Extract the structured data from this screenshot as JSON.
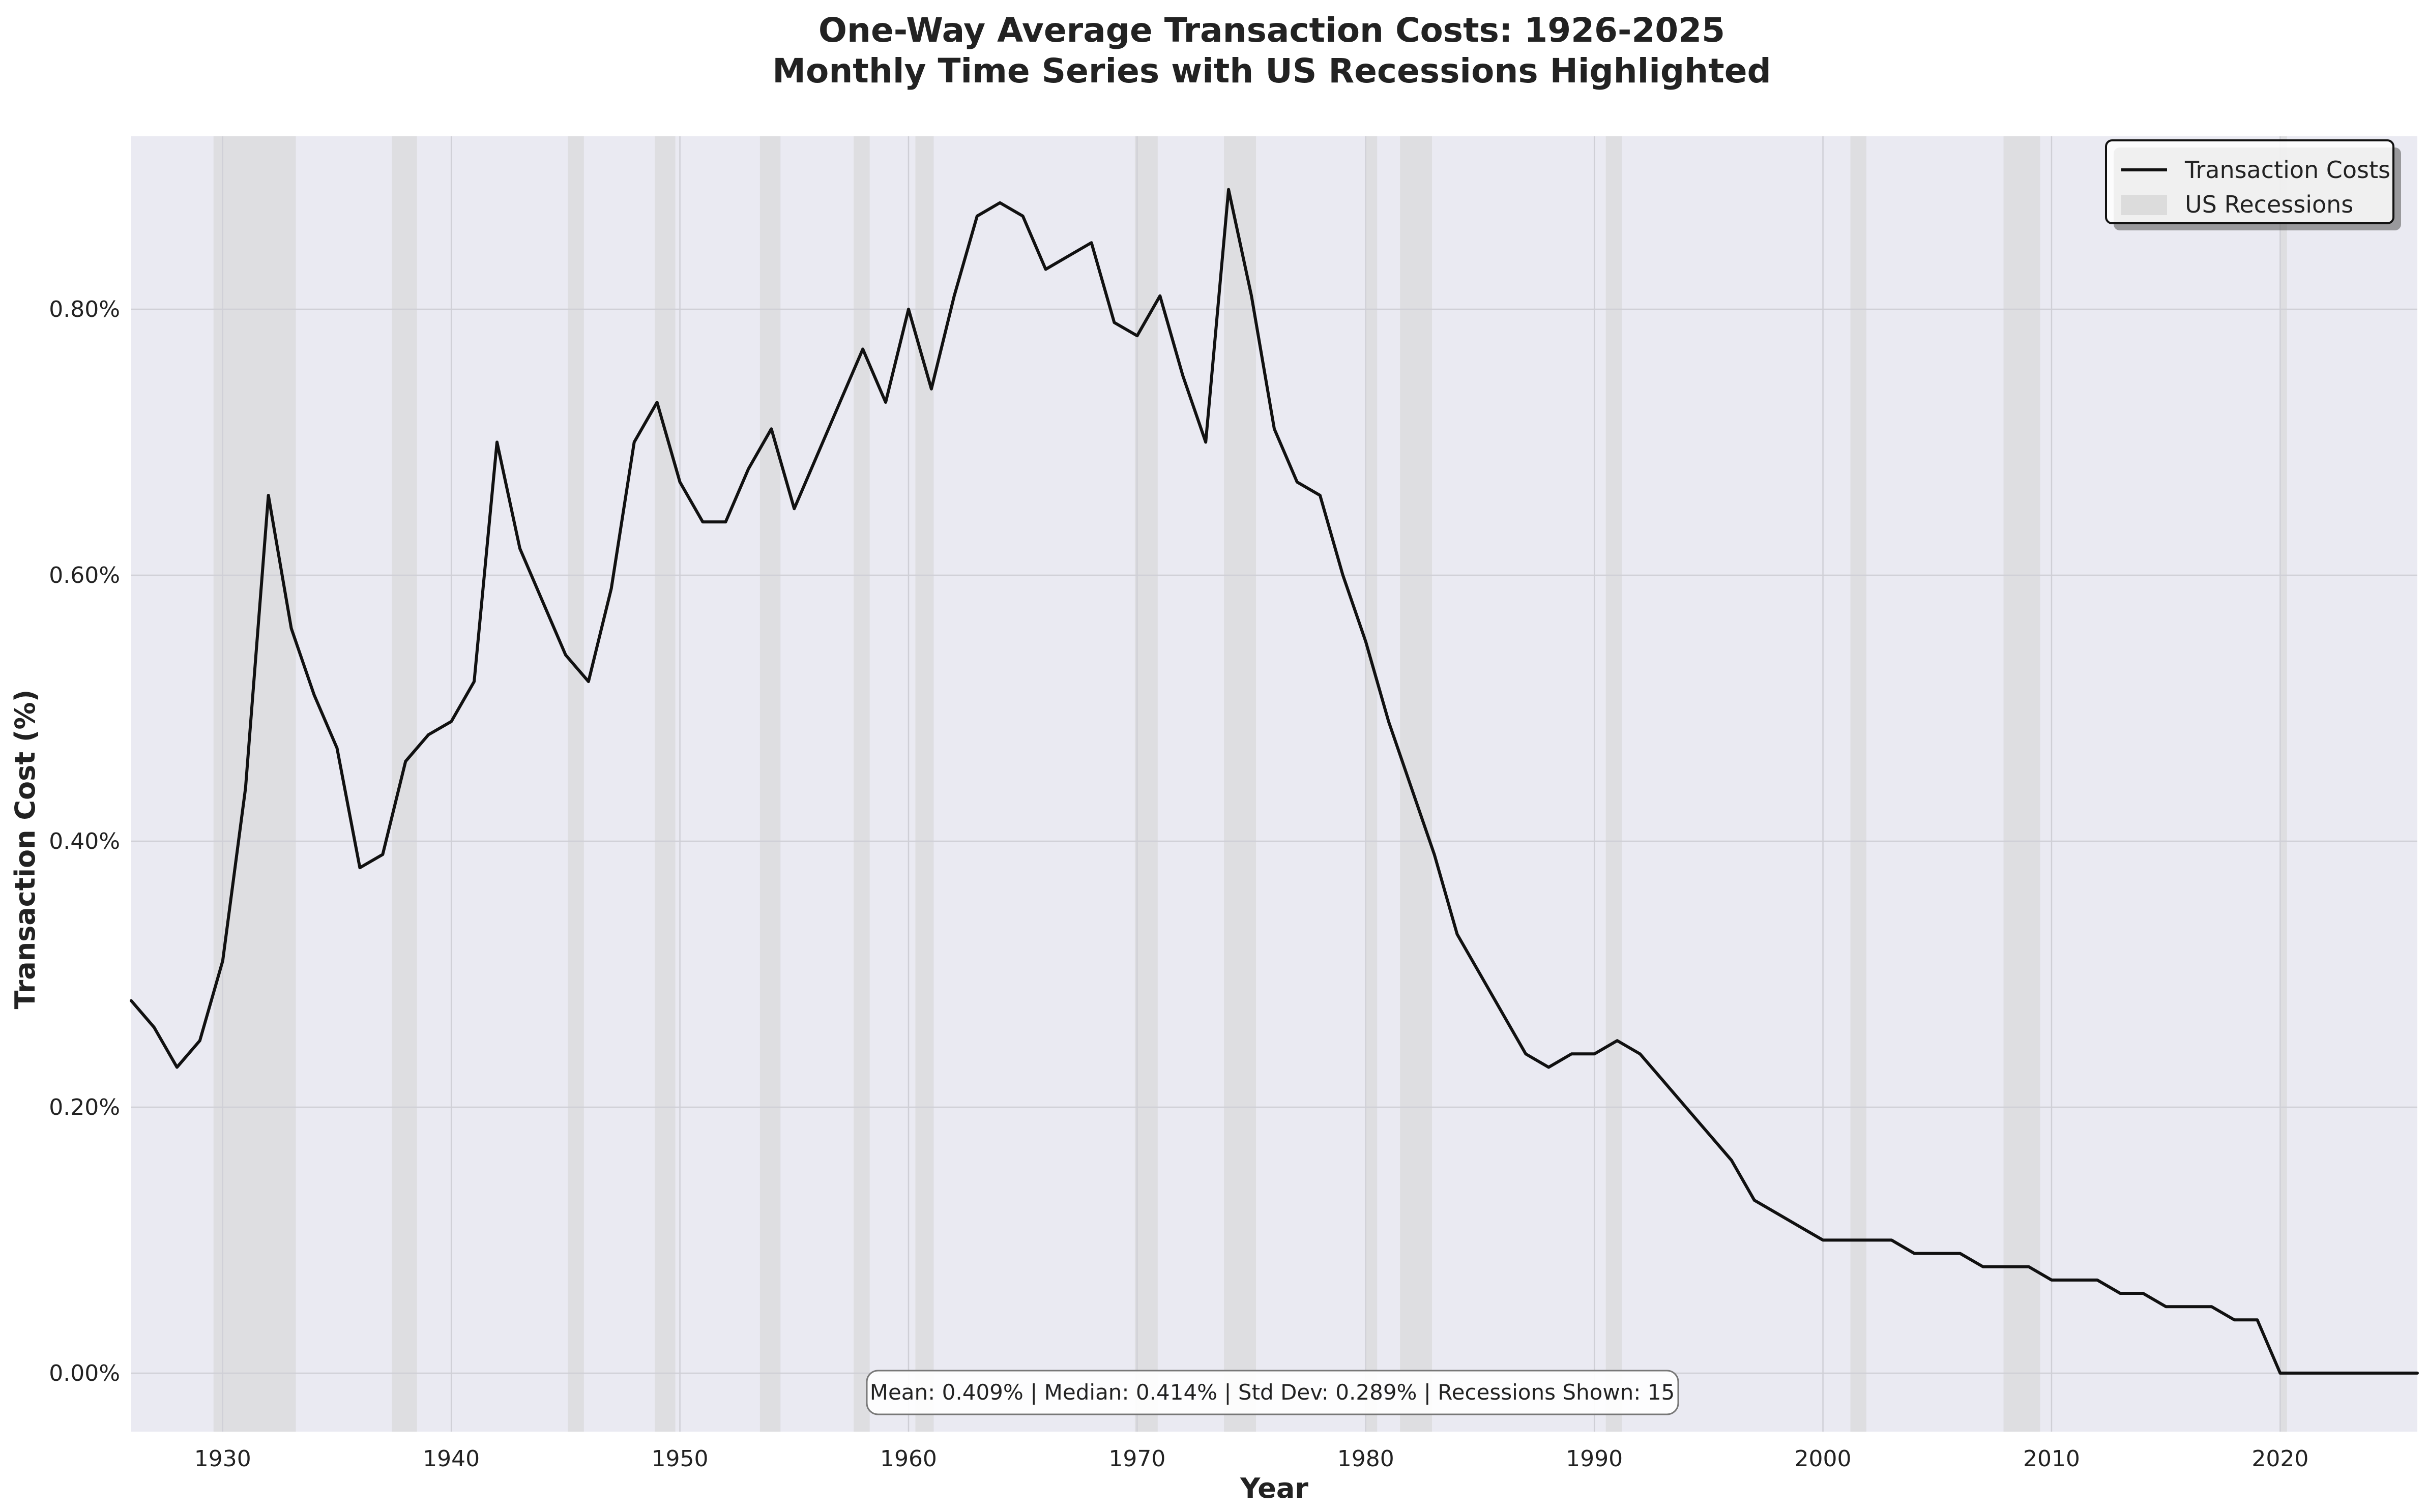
{
  "chart_data": {
    "type": "line",
    "title": "One-Way Average Transaction Costs: 1926-2025",
    "subtitle": "Monthly Time Series with US Recessions Highlighted",
    "xlabel": "Year",
    "ylabel": "Transaction Cost (%)",
    "xlim": [
      1926,
      2026
    ],
    "ylim": [
      -0.044,
      0.93
    ],
    "xticks": [
      1930,
      1940,
      1950,
      1960,
      1970,
      1980,
      1990,
      2000,
      2010,
      2020
    ],
    "yticks": [
      0.0,
      0.2,
      0.4,
      0.6,
      0.8
    ],
    "ytick_labels": [
      "0.00%",
      "0.20%",
      "0.40%",
      "0.60%",
      "0.80%"
    ],
    "grid": true,
    "legend_placement": "top-right",
    "series": [
      {
        "name": "Transaction Costs",
        "color": "#111111",
        "x": [
          1926,
          1927,
          1928,
          1929,
          1930,
          1931,
          1932,
          1933,
          1934,
          1935,
          1936,
          1937,
          1938,
          1939,
          1940,
          1941,
          1942,
          1943,
          1944,
          1945,
          1946,
          1947,
          1948,
          1949,
          1950,
          1951,
          1952,
          1953,
          1954,
          1955,
          1956,
          1957,
          1958,
          1959,
          1960,
          1961,
          1962,
          1963,
          1964,
          1965,
          1966,
          1967,
          1968,
          1969,
          1970,
          1971,
          1972,
          1973,
          1974,
          1975,
          1976,
          1977,
          1978,
          1979,
          1980,
          1981,
          1982,
          1983,
          1984,
          1985,
          1986,
          1987,
          1988,
          1989,
          1990,
          1991,
          1992,
          1993,
          1994,
          1995,
          1996,
          1997,
          1998,
          1999,
          2000,
          2001,
          2002,
          2003,
          2004,
          2005,
          2006,
          2007,
          2008,
          2009,
          2010,
          2011,
          2012,
          2013,
          2014,
          2015,
          2016,
          2017,
          2018,
          2019,
          2020,
          2021,
          2022,
          2023,
          2024,
          2025,
          2026
        ],
        "y": [
          0.28,
          0.26,
          0.23,
          0.25,
          0.31,
          0.44,
          0.66,
          0.56,
          0.51,
          0.47,
          0.38,
          0.39,
          0.46,
          0.48,
          0.49,
          0.52,
          0.7,
          0.62,
          0.58,
          0.54,
          0.52,
          0.59,
          0.7,
          0.73,
          0.67,
          0.64,
          0.64,
          0.68,
          0.71,
          0.65,
          0.69,
          0.73,
          0.77,
          0.73,
          0.8,
          0.74,
          0.81,
          0.87,
          0.88,
          0.87,
          0.83,
          0.84,
          0.85,
          0.79,
          0.78,
          0.81,
          0.75,
          0.7,
          0.89,
          0.81,
          0.71,
          0.67,
          0.66,
          0.6,
          0.55,
          0.49,
          0.44,
          0.39,
          0.33,
          0.3,
          0.27,
          0.24,
          0.23,
          0.24,
          0.24,
          0.25,
          0.24,
          0.22,
          0.2,
          0.18,
          0.16,
          0.13,
          0.12,
          0.11,
          0.1,
          0.1,
          0.1,
          0.1,
          0.09,
          0.09,
          0.09,
          0.08,
          0.08,
          0.08,
          0.07,
          0.07,
          0.07,
          0.06,
          0.06,
          0.05,
          0.05,
          0.05,
          0.04,
          0.04,
          0.0,
          0.0,
          0.0,
          0.0,
          0.0,
          0.0,
          0.0
        ]
      }
    ],
    "recessions": [
      [
        1929.6,
        1933.2
      ],
      [
        1937.4,
        1938.5
      ],
      [
        1945.1,
        1945.8
      ],
      [
        1948.9,
        1949.8
      ],
      [
        1953.5,
        1954.4
      ],
      [
        1957.6,
        1958.3
      ],
      [
        1960.3,
        1961.1
      ],
      [
        1969.9,
        1970.9
      ],
      [
        1973.8,
        1975.2
      ],
      [
        1980.0,
        1980.5
      ],
      [
        1981.5,
        1982.9
      ],
      [
        1990.5,
        1991.2
      ],
      [
        2001.2,
        2001.9
      ],
      [
        2007.9,
        2009.5
      ],
      [
        2020.0,
        2020.3
      ]
    ],
    "legend": {
      "line_label": "Transaction Costs",
      "recession_label": "US Recessions"
    },
    "stats_text": "Mean: 0.409% | Median: 0.414% | Std Dev: 0.289% | Recessions Shown: 15",
    "colors": {
      "plot_background": "#eaeaf2",
      "recession_fill": "#d4d4d4",
      "grid": "#cfcfd6",
      "line": "#111111"
    }
  }
}
